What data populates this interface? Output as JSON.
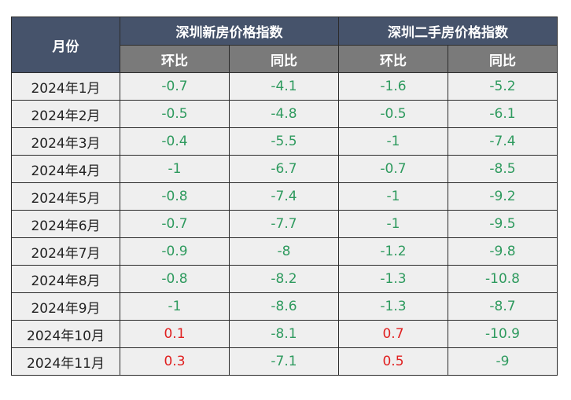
{
  "colors": {
    "header": "#46536b",
    "subheader": "#7a7a7a",
    "negative": "#2e9a5e",
    "positive": "#e02020",
    "cell": "#efefef"
  },
  "table": {
    "month_header": "月份",
    "group_new": "深圳新房价格指数",
    "group_second": "深圳二手房价格指数",
    "sub_mom": "环比",
    "sub_yoy": "同比"
  },
  "chart_data": {
    "type": "table",
    "columns": [
      "月份",
      "深圳新房价格指数 环比",
      "深圳新房价格指数 同比",
      "深圳二手房价格指数 环比",
      "深圳二手房价格指数 同比"
    ],
    "rows": [
      {
        "month": "2024年1月",
        "new_mom": "-0.7",
        "new_yoy": "-4.1",
        "sec_mom": "-1.6",
        "sec_yoy": "-5.2"
      },
      {
        "month": "2024年2月",
        "new_mom": "-0.5",
        "new_yoy": "-4.8",
        "sec_mom": "-0.5",
        "sec_yoy": "-6.1"
      },
      {
        "month": "2024年3月",
        "new_mom": "-0.4",
        "new_yoy": "-5.5",
        "sec_mom": "-1",
        "sec_yoy": "-7.4"
      },
      {
        "month": "2024年4月",
        "new_mom": "-1",
        "new_yoy": "-6.7",
        "sec_mom": "-0.7",
        "sec_yoy": "-8.5"
      },
      {
        "month": "2024年5月",
        "new_mom": "-0.8",
        "new_yoy": "-7.4",
        "sec_mom": "-1",
        "sec_yoy": "-9.2"
      },
      {
        "month": "2024年6月",
        "new_mom": "-0.7",
        "new_yoy": "-7.7",
        "sec_mom": "-1",
        "sec_yoy": "-9.5"
      },
      {
        "month": "2024年7月",
        "new_mom": "-0.9",
        "new_yoy": "-8",
        "sec_mom": "-1.2",
        "sec_yoy": "-9.8"
      },
      {
        "month": "2024年8月",
        "new_mom": "-0.8",
        "new_yoy": "-8.2",
        "sec_mom": "-1.3",
        "sec_yoy": "-10.8"
      },
      {
        "month": "2024年9月",
        "new_mom": "-1",
        "new_yoy": "-8.6",
        "sec_mom": "-1.3",
        "sec_yoy": "-8.7"
      },
      {
        "month": "2024年10月",
        "new_mom": "0.1",
        "new_yoy": "-8.1",
        "sec_mom": "0.7",
        "sec_yoy": "-10.9"
      },
      {
        "month": "2024年11月",
        "new_mom": "0.3",
        "new_yoy": "-7.1",
        "sec_mom": "0.5",
        "sec_yoy": "-9"
      }
    ]
  }
}
